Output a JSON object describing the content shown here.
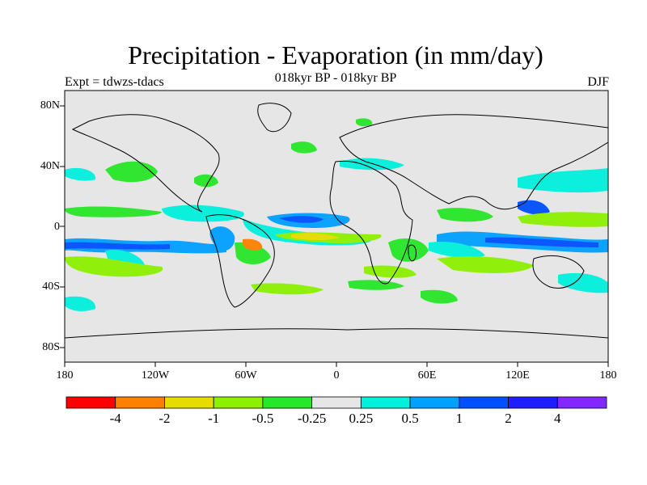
{
  "title": "Precipitation - Evaporation (in mm/day)",
  "subtitle": "018kyr BP - 018kyr BP",
  "expt_label": "Expt = tdwzs-tdacs",
  "season": "DJF",
  "map": {
    "lat_labels": [
      "80N",
      "40N",
      "0",
      "40S",
      "80S"
    ],
    "lon_labels": [
      "180",
      "120W",
      "60W",
      "0",
      "60E",
      "120E",
      "180"
    ],
    "background_color": "#e6e6e6"
  },
  "colorbar": {
    "colors": [
      "#ff0000",
      "#ff8000",
      "#e6dc00",
      "#8cf000",
      "#28e628",
      "#e6e6e6",
      "#00f0dc",
      "#00a0ff",
      "#0050ff",
      "#1e1eff",
      "#8228ff"
    ],
    "labels": [
      "-4",
      "-2",
      "-1",
      "-0.5",
      "-0.25",
      "0.25",
      "0.5",
      "1",
      "2",
      "4"
    ]
  }
}
